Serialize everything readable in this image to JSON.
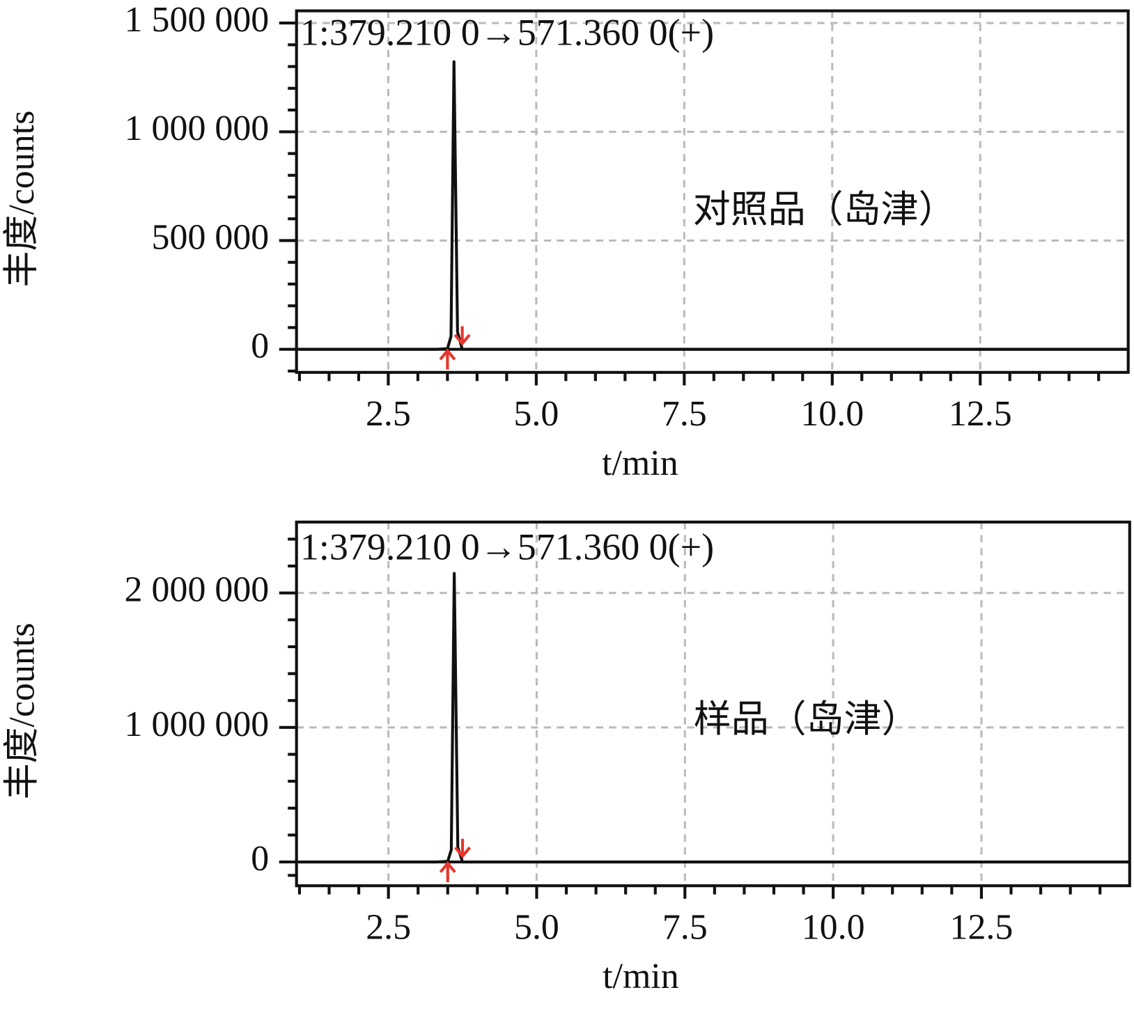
{
  "chart_data": [
    {
      "type": "line",
      "annotations": [
        "1:379.210 0→571.360 0(+)",
        "对照品（岛津）"
      ],
      "x_label": "t/min",
      "y_label": "丰度/counts",
      "x": [
        1.0,
        3.3,
        3.5,
        3.56,
        3.61,
        3.67,
        3.75,
        4.0,
        15.0
      ],
      "series": [
        {
          "color": "#111111",
          "values": [
            0,
            0,
            3000,
            60000,
            1322000,
            80000,
            0,
            0,
            0
          ]
        }
      ],
      "markers": {
        "color": "#e8352b",
        "x": [
          3.5,
          3.75
        ]
      },
      "xlim": [
        0.95,
        15.0
      ],
      "ylim": [
        -106000,
        1556000
      ],
      "xticks": [
        2.5,
        {
          "value": 5,
          "label": "5.0"
        },
        7.5,
        {
          "value": 10,
          "label": "10.0"
        },
        12.5
      ],
      "yticks": [
        0,
        {
          "value": 500000,
          "label": "500 000"
        },
        {
          "value": 1000000,
          "label": "1 000 000"
        },
        {
          "value": 1500000,
          "label": "1 500 000"
        }
      ],
      "xminorticks": [
        1,
        1.5,
        2,
        3,
        3.5,
        4,
        4.5,
        5.5,
        6,
        6.5,
        7,
        8,
        8.5,
        9,
        9.5,
        10.5,
        11,
        11.5,
        12,
        13,
        13.5,
        14,
        14.5
      ],
      "yminorticks": [
        -100000,
        100000,
        200000,
        300000,
        400000,
        600000,
        700000,
        800000,
        900000,
        1100000,
        1200000,
        1300000,
        1400000
      ],
      "grid": true
    },
    {
      "type": "line",
      "annotations": [
        "1:379.210 0→571.360 0(+)",
        "样品（岛津）"
      ],
      "x_label": "t/min",
      "y_label": "丰度/counts",
      "x": [
        1.0,
        3.3,
        3.5,
        3.56,
        3.61,
        3.67,
        3.75,
        4.0,
        15.0
      ],
      "series": [
        {
          "color": "#111111",
          "values": [
            0,
            0,
            4000,
            90000,
            2145000,
            110000,
            0,
            0,
            0
          ]
        }
      ],
      "markers": {
        "color": "#e8352b",
        "x": [
          3.5,
          3.75
        ]
      },
      "xlim": [
        0.95,
        15.0
      ],
      "ylim": [
        -177000,
        2527000
      ],
      "xticks": [
        2.5,
        {
          "value": 5,
          "label": "5.0"
        },
        7.5,
        {
          "value": 10,
          "label": "10.0"
        },
        12.5
      ],
      "yticks": [
        0,
        {
          "value": 1000000,
          "label": "1 000 000"
        },
        {
          "value": 2000000,
          "label": "2 000 000"
        }
      ],
      "xminorticks": [
        1,
        1.5,
        2,
        3,
        3.5,
        4,
        4.5,
        5.5,
        6,
        6.5,
        7,
        8,
        8.5,
        9,
        9.5,
        10.5,
        11,
        11.5,
        12,
        13,
        13.5,
        14,
        14.5
      ],
      "yminorticks": [
        -100000,
        200000,
        400000,
        600000,
        800000,
        1200000,
        1400000,
        1600000,
        1800000,
        2200000,
        2400000
      ],
      "grid": true
    }
  ]
}
